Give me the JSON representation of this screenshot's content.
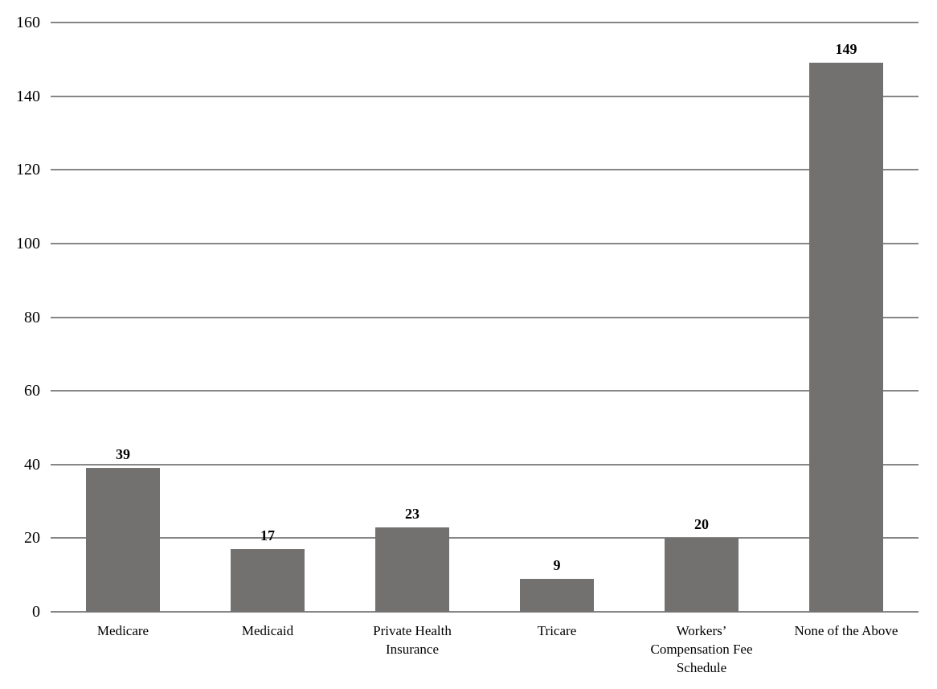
{
  "chart_data": {
    "type": "bar",
    "title": "",
    "xlabel": "",
    "ylabel": "",
    "categories": [
      "Medicare",
      "Medicaid",
      "Private Health Insurance",
      "Tricare",
      "Workers’ Compensation Fee Schedule",
      "None of the Above"
    ],
    "category_lines": [
      [
        "Medicare"
      ],
      [
        "Medicaid"
      ],
      [
        "Private Health",
        "Insurance"
      ],
      [
        "Tricare"
      ],
      [
        "Workers’",
        "Compensation Fee",
        "Schedule"
      ],
      [
        "None of the Above"
      ]
    ],
    "values": [
      39,
      17,
      23,
      9,
      20,
      149
    ],
    "data_labels": [
      "39",
      "17",
      "23",
      "9",
      "20",
      "149"
    ],
    "ylim": [
      0,
      160
    ],
    "ytick_step": 20,
    "ytick_labels": [
      "0",
      "20",
      "40",
      "60",
      "80",
      "100",
      "120",
      "140",
      "160"
    ],
    "grid": "horizontal",
    "legend": "none",
    "colors": {
      "bar": "#737070",
      "gridline": "#868686",
      "text": "#000000",
      "background": "#ffffff"
    }
  }
}
